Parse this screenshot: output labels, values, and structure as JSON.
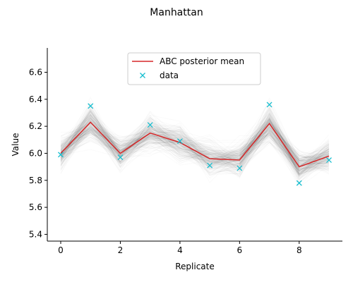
{
  "chart_data": {
    "type": "line",
    "title": "Manhattan",
    "xlabel": "Replicate",
    "ylabel": "Value",
    "xlim": [
      -0.45,
      9.45
    ],
    "ylim": [
      5.35,
      6.78
    ],
    "x_ticks": [
      0,
      2,
      4,
      6,
      8
    ],
    "y_ticks": [
      5.4,
      5.6,
      5.8,
      6.0,
      6.2,
      6.4,
      6.6
    ],
    "x_tick_labels": [
      "0",
      "2",
      "4",
      "6",
      "8"
    ],
    "y_tick_labels": [
      "5.4",
      "5.6",
      "5.8",
      "6.0",
      "6.2",
      "6.4",
      "6.6"
    ],
    "grid": false,
    "legend_position": "top-center",
    "x": [
      0,
      1,
      2,
      3,
      4,
      5,
      6,
      7,
      8,
      9
    ],
    "series": [
      {
        "name": "ABC posterior mean",
        "kind": "line",
        "color": "#d62728",
        "values": [
          6.0,
          6.23,
          6.0,
          6.15,
          6.08,
          5.96,
          5.95,
          6.22,
          5.9,
          5.98
        ]
      },
      {
        "name": "data",
        "kind": "scatter",
        "marker": "x",
        "color": "#17becf",
        "values": [
          5.99,
          6.35,
          5.97,
          6.21,
          6.09,
          5.91,
          5.89,
          6.36,
          5.78,
          5.95
        ]
      }
    ],
    "posterior_band": {
      "color": "#000000",
      "x": [
        0,
        1,
        2,
        3,
        4,
        5,
        6,
        7,
        8,
        9
      ],
      "spread": [
        0.3,
        0.36,
        0.3,
        0.33,
        0.33,
        0.3,
        0.31,
        0.36,
        0.31,
        0.3
      ]
    }
  }
}
